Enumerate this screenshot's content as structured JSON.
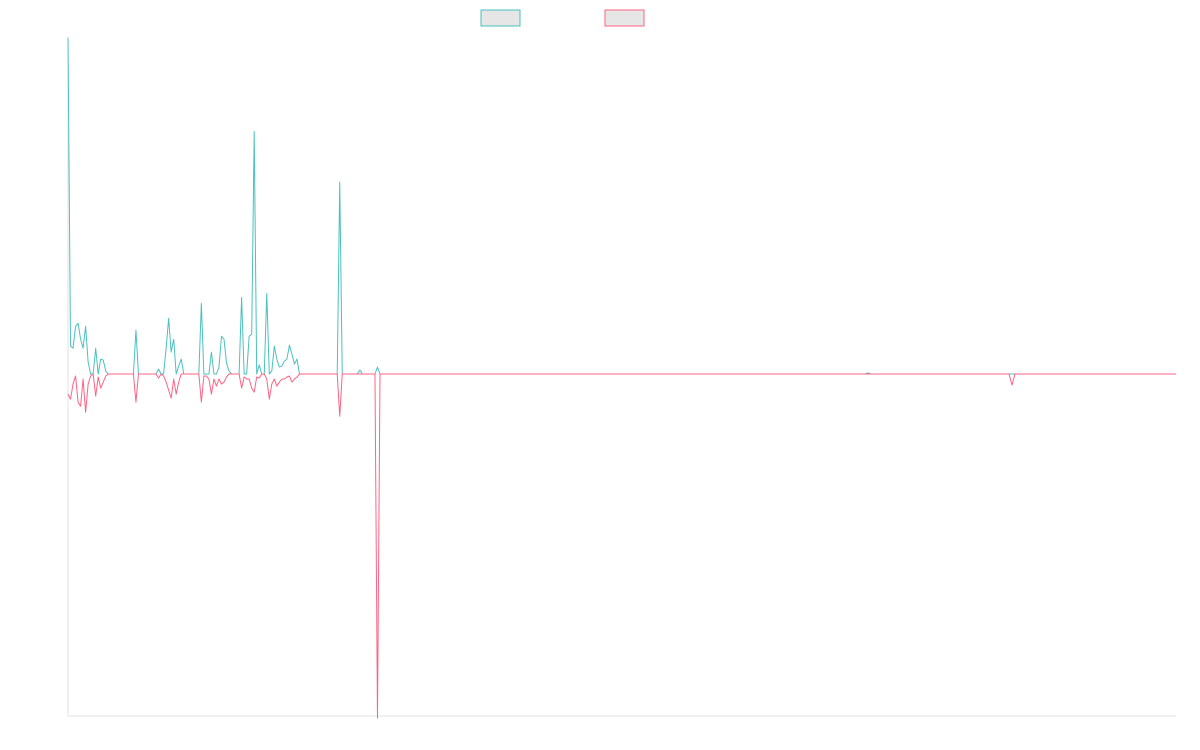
{
  "colors": {
    "series_a": "#4bc0c0",
    "series_b": "#ff6384",
    "legend_fill": "#e6e6e6",
    "axis": "#e0e0e0"
  },
  "chart_data": {
    "type": "line",
    "title": "",
    "xlabel": "",
    "ylabel": "",
    "grid": false,
    "ylim": [
      -340,
      340
    ],
    "legend": {
      "placement": "top-center",
      "entries": [
        "",
        ""
      ]
    },
    "series": [
      {
        "values": [
          338,
          28,
          26,
          48,
          51,
          35,
          26,
          48,
          12,
          0,
          0,
          26,
          0,
          15,
          14,
          3,
          0,
          0,
          0,
          0,
          0,
          0,
          0,
          0,
          0,
          0,
          0,
          44,
          0,
          0,
          0,
          0,
          0,
          0,
          0,
          0,
          5,
          0,
          0,
          26,
          56,
          22,
          35,
          0,
          8,
          15,
          0,
          0,
          0,
          0,
          0,
          0,
          0,
          71,
          0,
          0,
          0,
          22,
          0,
          0,
          7,
          38,
          35,
          11,
          3,
          0,
          0,
          0,
          0,
          77,
          0,
          0,
          38,
          40,
          244,
          0,
          9,
          0,
          0,
          81,
          0,
          3,
          28,
          15,
          7,
          8,
          13,
          15,
          29,
          20,
          10,
          15,
          0,
          0,
          0,
          0,
          0,
          0,
          0,
          0,
          0,
          0,
          0,
          0,
          0,
          0,
          0,
          0,
          193,
          0,
          0,
          0,
          0,
          0,
          0,
          0,
          4,
          0,
          0,
          0,
          0,
          0,
          0,
          7,
          0
        ]
      },
      {
        "values": [
          -20,
          -25,
          -10,
          -2,
          -28,
          -32,
          -5,
          -38,
          -10,
          -2,
          0,
          -22,
          -3,
          -14,
          -8,
          -2,
          0,
          0,
          0,
          0,
          0,
          0,
          0,
          0,
          0,
          0,
          0,
          -28,
          0,
          0,
          0,
          0,
          0,
          0,
          0,
          0,
          -4,
          0,
          -2,
          -8,
          -16,
          -24,
          -5,
          -20,
          -8,
          0,
          0,
          0,
          0,
          0,
          0,
          0,
          0,
          -28,
          -2,
          -2,
          -5,
          -20,
          -5,
          -12,
          -5,
          -10,
          -8,
          -3,
          0,
          0,
          0,
          0,
          0,
          -14,
          -3,
          -5,
          -5,
          -14,
          -18,
          -3,
          -4,
          0,
          0,
          -5,
          -25,
          -10,
          -5,
          -12,
          -8,
          -5,
          -5,
          -3,
          -2,
          -8,
          -5,
          -3,
          0,
          0,
          0,
          0,
          0,
          0,
          0,
          0,
          0,
          0,
          0,
          0,
          0,
          0,
          0,
          0,
          -42,
          0,
          0,
          0,
          0,
          0,
          0,
          0,
          0,
          0,
          0,
          0,
          0,
          0,
          0,
          -342,
          0
        ]
      }
    ],
    "tail_events": [
      {
        "series": 0,
        "at_fraction": 0.722,
        "value": 1
      },
      {
        "series": 1,
        "at_fraction": 0.852,
        "value": -11
      }
    ]
  }
}
